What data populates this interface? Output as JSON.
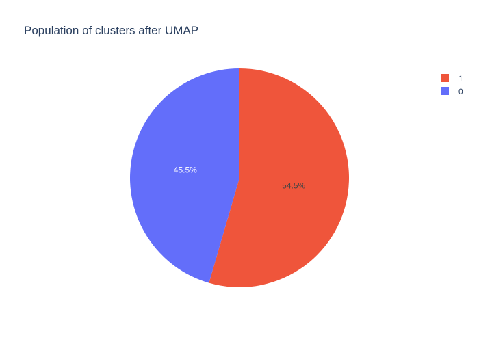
{
  "chart_data": {
    "type": "pie",
    "title": "Population of clusters after UMAP",
    "labels": [
      "1",
      "0"
    ],
    "values": [
      54.5,
      45.5
    ],
    "percent_labels": [
      "54.5%",
      "45.5%"
    ],
    "colors": [
      "#ef553b",
      "#636efa"
    ],
    "label_colors": [
      "#444444",
      "#ffffff"
    ],
    "legend_placement": "top-right",
    "direction": "clockwise",
    "start_angle": "12 o'clock"
  }
}
